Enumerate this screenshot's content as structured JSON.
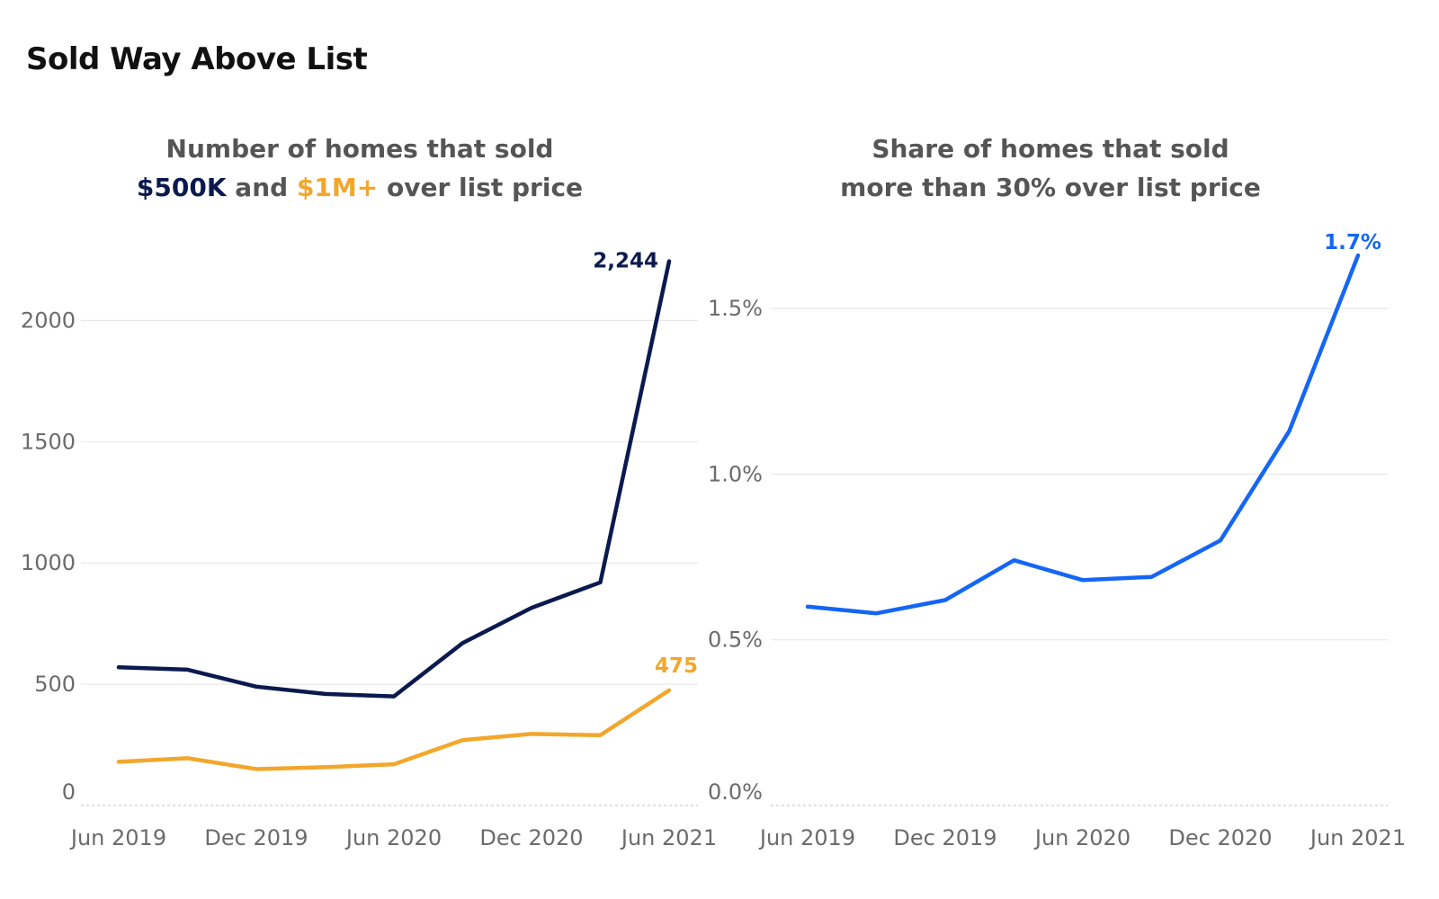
{
  "title": "Sold Way Above List",
  "chart_data": [
    {
      "type": "line",
      "title_lines": [
        [
          {
            "text": "Number of homes that sold",
            "color": "#555555"
          }
        ],
        [
          {
            "text": "$500K",
            "color": "#0b1a4e"
          },
          {
            "text": " and ",
            "color": "#555555"
          },
          {
            "text": "$1M+",
            "color": "#f2a72b"
          },
          {
            "text": " over list price",
            "color": "#555555"
          }
        ]
      ],
      "x": [
        "2019-06",
        "2019-09",
        "2019-12",
        "2020-03",
        "2020-06",
        "2020-09",
        "2020-12",
        "2021-03",
        "2021-06"
      ],
      "x_tick_labels": [
        {
          "x": "2019-06",
          "label": "Jun 2019"
        },
        {
          "x": "2019-12",
          "label": "Dec 2019"
        },
        {
          "x": "2020-06",
          "label": "Jun 2020"
        },
        {
          "x": "2020-12",
          "label": "Dec 2020"
        },
        {
          "x": "2021-06",
          "label": "Jun 2021"
        }
      ],
      "y_ticks": [
        0,
        500,
        1000,
        1500,
        2000
      ],
      "y_tick_labels": [
        "0",
        "500",
        "1000",
        "1500",
        "2000"
      ],
      "ylim": [
        0,
        2350
      ],
      "grid": true,
      "series": [
        {
          "name": "$500K",
          "color": "#0b1a4e",
          "values": [
            570,
            560,
            490,
            460,
            450,
            670,
            815,
            920,
            2244
          ],
          "end_label": "2,244"
        },
        {
          "name": "$1M+",
          "color": "#f2a72b",
          "values": [
            180,
            195,
            150,
            158,
            170,
            270,
            295,
            290,
            475
          ],
          "end_label": "475"
        }
      ]
    },
    {
      "type": "line",
      "title_lines": [
        [
          {
            "text": "Share of homes that sold",
            "color": "#555555"
          }
        ],
        [
          {
            "text": "more than 30% over list price",
            "color": "#555555"
          }
        ]
      ],
      "x": [
        "2019-06",
        "2019-09",
        "2019-12",
        "2020-03",
        "2020-06",
        "2020-09",
        "2020-12",
        "2021-03",
        "2021-06"
      ],
      "x_tick_labels": [
        {
          "x": "2019-06",
          "label": "Jun 2019"
        },
        {
          "x": "2019-12",
          "label": "Dec 2019"
        },
        {
          "x": "2020-06",
          "label": "Jun 2020"
        },
        {
          "x": "2020-12",
          "label": "Dec 2020"
        },
        {
          "x": "2021-06",
          "label": "Jun 2021"
        }
      ],
      "y_ticks": [
        0,
        0.5,
        1.0,
        1.5
      ],
      "y_tick_labels": [
        "0.0%",
        "0.5%",
        "1.0%",
        "1.5%"
      ],
      "ylim": [
        0,
        1.72
      ],
      "grid": true,
      "series": [
        {
          "name": "",
          "color": "#1466f5",
          "values": [
            0.6,
            0.58,
            0.62,
            0.74,
            0.68,
            0.69,
            0.8,
            1.13,
            1.66
          ],
          "end_label": "1.7%"
        }
      ]
    }
  ]
}
